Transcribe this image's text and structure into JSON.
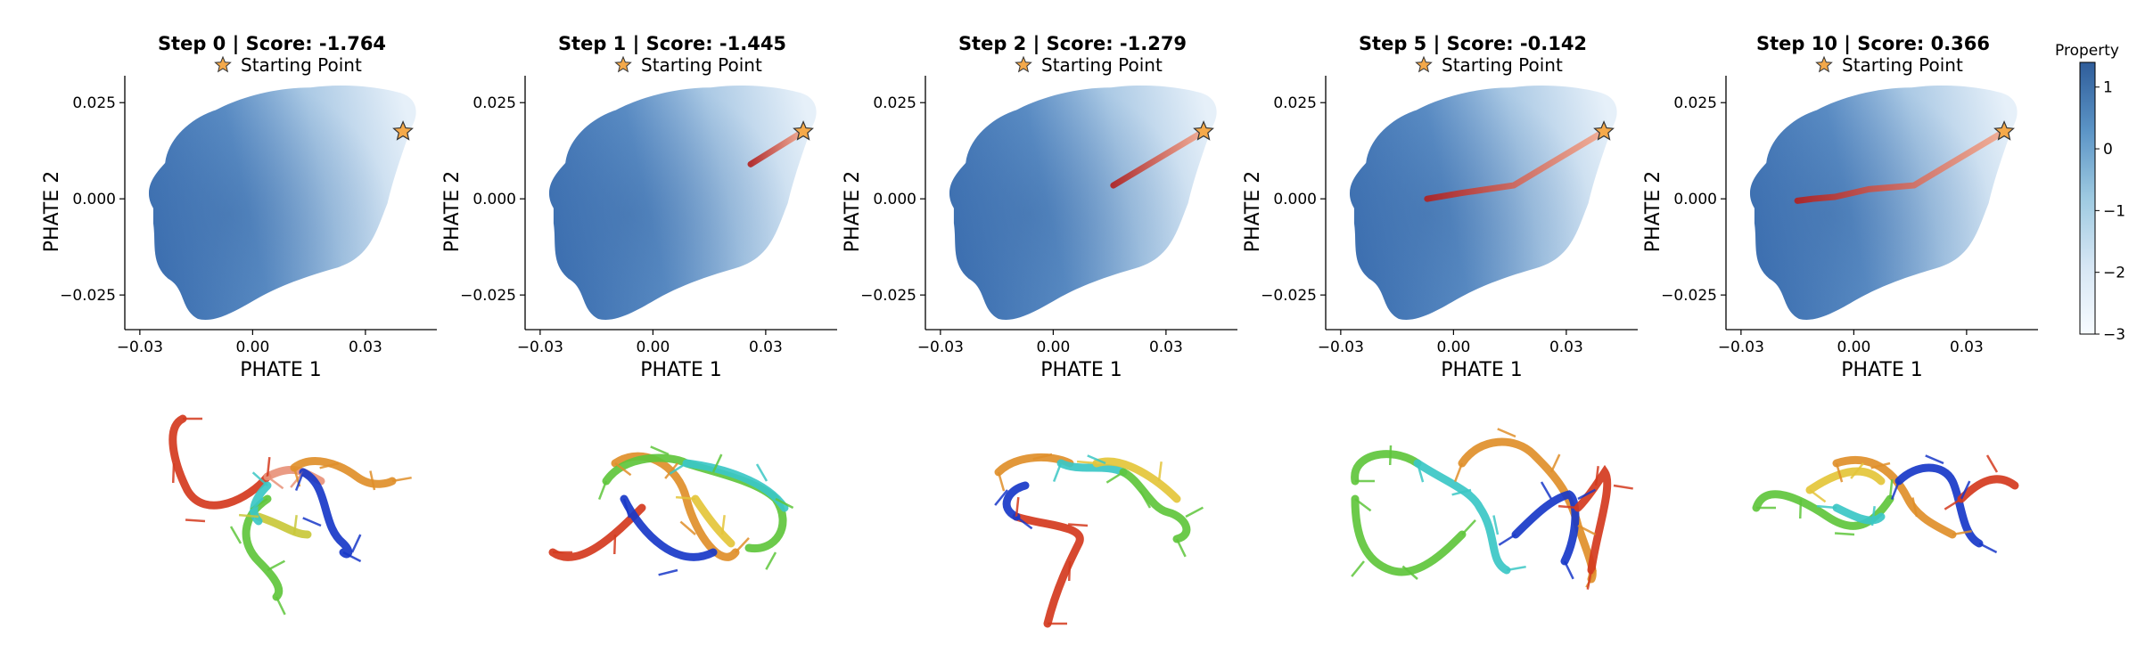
{
  "chart_data": {
    "type": "scatter",
    "description_free": true,
    "colorbar": {
      "label": "Property",
      "ticks": [
        "1",
        "0",
        "−1",
        "−2",
        "−3"
      ],
      "values": [
        1,
        0,
        -1,
        -2,
        -3
      ],
      "range": [
        -3,
        1.4
      ]
    },
    "xlabel": "PHATE 1",
    "ylabel": "PHATE 2",
    "xticks": [
      {
        "v": -0.03,
        "t": "−0.03"
      },
      {
        "v": 0.0,
        "t": "0.00"
      },
      {
        "v": 0.03,
        "t": "0.03"
      }
    ],
    "yticks": [
      {
        "v": 0.025,
        "t": "0.025"
      },
      {
        "v": 0.0,
        "t": "0.000"
      },
      {
        "v": -0.025,
        "t": "−0.025"
      }
    ],
    "xlim": [
      -0.034,
      0.049
    ],
    "ylim": [
      -0.034,
      0.032
    ],
    "legend_label": "Starting Point",
    "start_point": [
      0.04,
      0.0175
    ],
    "panels": [
      {
        "title": "Step 0 | Score: -1.764",
        "trajectory": [
          [
            0.04,
            0.0175
          ]
        ]
      },
      {
        "title": "Step 1 | Score: -1.445",
        "trajectory": [
          [
            0.04,
            0.0175
          ],
          [
            0.026,
            0.009
          ]
        ]
      },
      {
        "title": "Step 2 | Score: -1.279",
        "trajectory": [
          [
            0.04,
            0.0175
          ],
          [
            0.016,
            0.0035
          ]
        ]
      },
      {
        "title": "Step 5 | Score: -0.142",
        "trajectory": [
          [
            0.04,
            0.0175
          ],
          [
            0.016,
            0.0035
          ],
          [
            0.002,
            0.0015
          ],
          [
            -0.007,
            0.0
          ]
        ]
      },
      {
        "title": "Step 10 | Score: 0.366",
        "trajectory": [
          [
            0.04,
            0.0175
          ],
          [
            0.016,
            0.0035
          ],
          [
            0.004,
            0.0025
          ],
          [
            -0.005,
            0.0005
          ],
          [
            -0.011,
            0.0
          ],
          [
            -0.015,
            -0.0005
          ]
        ]
      }
    ]
  }
}
